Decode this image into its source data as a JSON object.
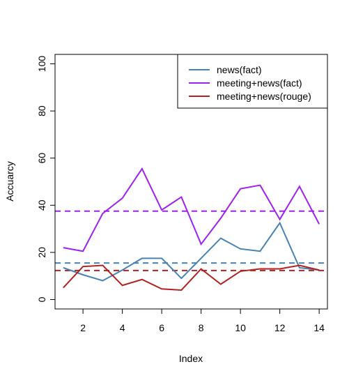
{
  "chart_data": {
    "type": "line",
    "title": "",
    "xlabel": "Index",
    "ylabel": "Accuarcy",
    "xlim": [
      0.58,
      14.42
    ],
    "ylim": [
      -4,
      104
    ],
    "xticks": [
      2,
      4,
      6,
      8,
      10,
      12,
      14
    ],
    "yticks": [
      0,
      20,
      40,
      60,
      80,
      100
    ],
    "x": [
      1,
      2,
      3,
      4,
      5,
      6,
      7,
      8,
      9,
      10,
      11,
      12,
      13,
      14
    ],
    "series": [
      {
        "name": "news(fact)",
        "color": "#4682b4",
        "values": [
          13.5,
          10.5,
          8,
          12.5,
          17.5,
          17.5,
          9,
          17.5,
          26,
          21.5,
          20.5,
          32.5,
          13.5,
          12.5
        ]
      },
      {
        "name": "meeting+news(fact)",
        "color": "#a020f0",
        "values": [
          22,
          20.5,
          36.5,
          43,
          55.5,
          38,
          43.5,
          23.5,
          34.5,
          47,
          48.5,
          34,
          48,
          32
        ]
      },
      {
        "name": "meeting+news(rouge)",
        "color": "#b22222",
        "values": [
          5,
          14,
          14.5,
          6,
          8.5,
          4.5,
          4,
          13,
          6.5,
          12,
          13,
          13,
          14.5,
          12.5
        ]
      }
    ],
    "reference_lines": [
      {
        "series": "news(fact)",
        "y": 15.5,
        "color": "#4682b4",
        "style": "dashed"
      },
      {
        "series": "meeting+news(fact)",
        "y": 37.5,
        "color": "#a020f0",
        "style": "dashed"
      },
      {
        "series": "meeting+news(rouge)",
        "y": 12.3,
        "color": "#b22222",
        "style": "dashed"
      }
    ],
    "legend": {
      "position": "top-right"
    },
    "grid": false
  }
}
